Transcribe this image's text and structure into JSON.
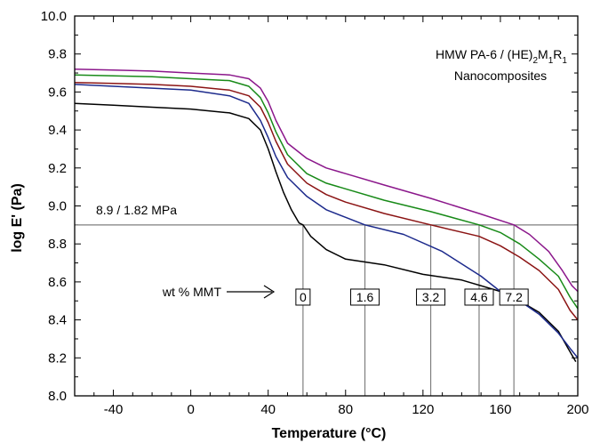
{
  "chart_data": {
    "type": "line",
    "title": "",
    "inset_text": {
      "line1_prefix": "HMW PA-6 / (HE)",
      "line1_sub1": "2",
      "line1_mid1": "M",
      "line1_sub2": "1",
      "line1_mid2": "R",
      "line1_sub3": "1",
      "line2": "Nanocomposites"
    },
    "xlabel": "Temperature (°C)",
    "ylabel": "log E' (Pa)",
    "xlim": [
      -60,
      200
    ],
    "ylim": [
      8.0,
      10.0
    ],
    "x_ticks": [
      -40,
      0,
      40,
      80,
      120,
      160,
      200
    ],
    "y_ticks": [
      "8.0",
      "8.2",
      "8.4",
      "8.6",
      "8.8",
      "9.0",
      "9.2",
      "9.4",
      "9.6",
      "9.8",
      "10.0"
    ],
    "grid": false,
    "reference_line": {
      "y": 8.9,
      "label": "8.9 / 1.82 MPa"
    },
    "arrow_label": "wt % MMT",
    "markers": [
      {
        "label": "0",
        "x": 58
      },
      {
        "label": "1.6",
        "x": 90
      },
      {
        "label": "3.2",
        "x": 124
      },
      {
        "label": "4.6",
        "x": 149
      },
      {
        "label": "7.2",
        "x": 167
      }
    ],
    "series": [
      {
        "color": "#000000",
        "points": [
          [
            -60,
            9.54
          ],
          [
            -40,
            9.53
          ],
          [
            -20,
            9.52
          ],
          [
            0,
            9.51
          ],
          [
            20,
            9.49
          ],
          [
            30,
            9.46
          ],
          [
            36,
            9.4
          ],
          [
            40,
            9.3
          ],
          [
            44,
            9.18
          ],
          [
            48,
            9.07
          ],
          [
            52,
            8.98
          ],
          [
            56,
            8.91
          ],
          [
            58,
            8.9
          ],
          [
            62,
            8.84
          ],
          [
            70,
            8.77
          ],
          [
            80,
            8.72
          ],
          [
            100,
            8.69
          ],
          [
            120,
            8.64
          ],
          [
            140,
            8.61
          ],
          [
            160,
            8.55
          ],
          [
            170,
            8.5
          ],
          [
            180,
            8.44
          ],
          [
            190,
            8.34
          ],
          [
            195,
            8.25
          ],
          [
            199,
            8.18
          ]
        ]
      },
      {
        "color": "#1c2a8c",
        "points": [
          [
            -60,
            9.64
          ],
          [
            -40,
            9.63
          ],
          [
            -20,
            9.62
          ],
          [
            0,
            9.61
          ],
          [
            20,
            9.58
          ],
          [
            30,
            9.54
          ],
          [
            36,
            9.45
          ],
          [
            40,
            9.36
          ],
          [
            44,
            9.26
          ],
          [
            50,
            9.15
          ],
          [
            60,
            9.05
          ],
          [
            70,
            8.98
          ],
          [
            80,
            8.94
          ],
          [
            90,
            8.9
          ],
          [
            110,
            8.85
          ],
          [
            130,
            8.76
          ],
          [
            150,
            8.63
          ],
          [
            160,
            8.55
          ],
          [
            170,
            8.5
          ],
          [
            180,
            8.43
          ],
          [
            190,
            8.33
          ],
          [
            196,
            8.25
          ],
          [
            200,
            8.2
          ]
        ]
      },
      {
        "color": "#8b1414",
        "points": [
          [
            -60,
            9.65
          ],
          [
            -40,
            9.645
          ],
          [
            -20,
            9.64
          ],
          [
            0,
            9.63
          ],
          [
            20,
            9.61
          ],
          [
            30,
            9.58
          ],
          [
            36,
            9.52
          ],
          [
            40,
            9.44
          ],
          [
            44,
            9.34
          ],
          [
            50,
            9.22
          ],
          [
            60,
            9.12
          ],
          [
            70,
            9.06
          ],
          [
            80,
            9.02
          ],
          [
            100,
            8.96
          ],
          [
            124,
            8.9
          ],
          [
            149,
            8.84
          ],
          [
            160,
            8.79
          ],
          [
            170,
            8.73
          ],
          [
            180,
            8.66
          ],
          [
            190,
            8.56
          ],
          [
            196,
            8.45
          ],
          [
            200,
            8.4
          ]
        ]
      },
      {
        "color": "#188a18",
        "points": [
          [
            -60,
            9.69
          ],
          [
            -40,
            9.685
          ],
          [
            -20,
            9.68
          ],
          [
            0,
            9.67
          ],
          [
            20,
            9.66
          ],
          [
            30,
            9.63
          ],
          [
            36,
            9.57
          ],
          [
            40,
            9.49
          ],
          [
            44,
            9.39
          ],
          [
            50,
            9.27
          ],
          [
            60,
            9.17
          ],
          [
            70,
            9.12
          ],
          [
            80,
            9.09
          ],
          [
            100,
            9.03
          ],
          [
            124,
            8.97
          ],
          [
            149,
            8.9
          ],
          [
            160,
            8.86
          ],
          [
            170,
            8.8
          ],
          [
            180,
            8.72
          ],
          [
            190,
            8.63
          ],
          [
            196,
            8.52
          ],
          [
            200,
            8.46
          ]
        ]
      },
      {
        "color": "#8b178b",
        "points": [
          [
            -60,
            9.72
          ],
          [
            -40,
            9.715
          ],
          [
            -20,
            9.71
          ],
          [
            0,
            9.7
          ],
          [
            20,
            9.69
          ],
          [
            30,
            9.67
          ],
          [
            36,
            9.62
          ],
          [
            40,
            9.55
          ],
          [
            44,
            9.45
          ],
          [
            50,
            9.33
          ],
          [
            60,
            9.25
          ],
          [
            70,
            9.2
          ],
          [
            80,
            9.17
          ],
          [
            100,
            9.11
          ],
          [
            124,
            9.04
          ],
          [
            149,
            8.96
          ],
          [
            167,
            8.9
          ],
          [
            175,
            8.85
          ],
          [
            185,
            8.76
          ],
          [
            192,
            8.66
          ],
          [
            197,
            8.58
          ],
          [
            200,
            8.55
          ]
        ]
      }
    ]
  }
}
